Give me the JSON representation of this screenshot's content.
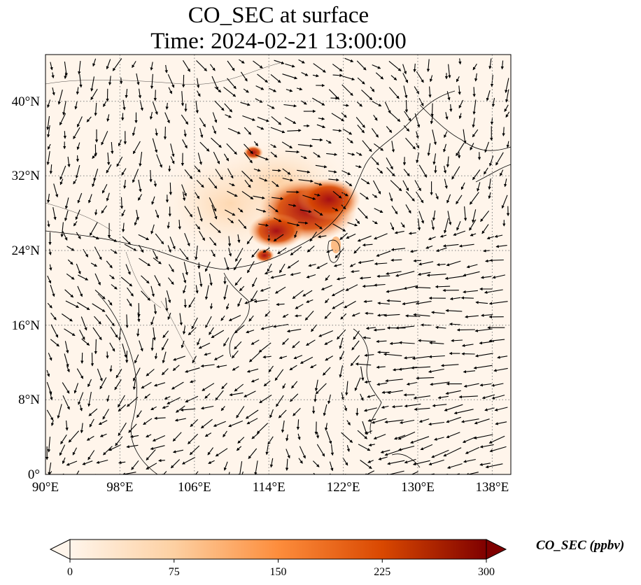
{
  "title": {
    "line1": "CO_SEC at surface",
    "line2": "Time: 2024-02-21 13:00:00"
  },
  "map": {
    "projection": "PlateCarree",
    "lon_range": [
      90,
      140
    ],
    "lat_range": [
      0,
      45
    ],
    "lon_ticks": [
      "90°E",
      "98°E",
      "106°E",
      "114°E",
      "122°E",
      "130°E",
      "138°E"
    ],
    "lat_ticks": [
      "0°",
      "8°N",
      "16°N",
      "24°N",
      "32°N",
      "40°N"
    ],
    "gridlines": "dotted",
    "field": "CO_SEC concentration with surface wind vectors (black arrows)",
    "hotspot_region": "Eastern China / Yangtze River Delta",
    "colors": {
      "low": "#fff5eb",
      "mid": "#fdae6b",
      "high": "#d94801",
      "max": "#7f0000"
    }
  },
  "colorbar": {
    "label": "CO_SEC (ppbv)",
    "ticks": [
      "0",
      "75",
      "150",
      "225",
      "300"
    ],
    "range": [
      0,
      300
    ],
    "extend": "both",
    "cmap": "Oranges"
  }
}
